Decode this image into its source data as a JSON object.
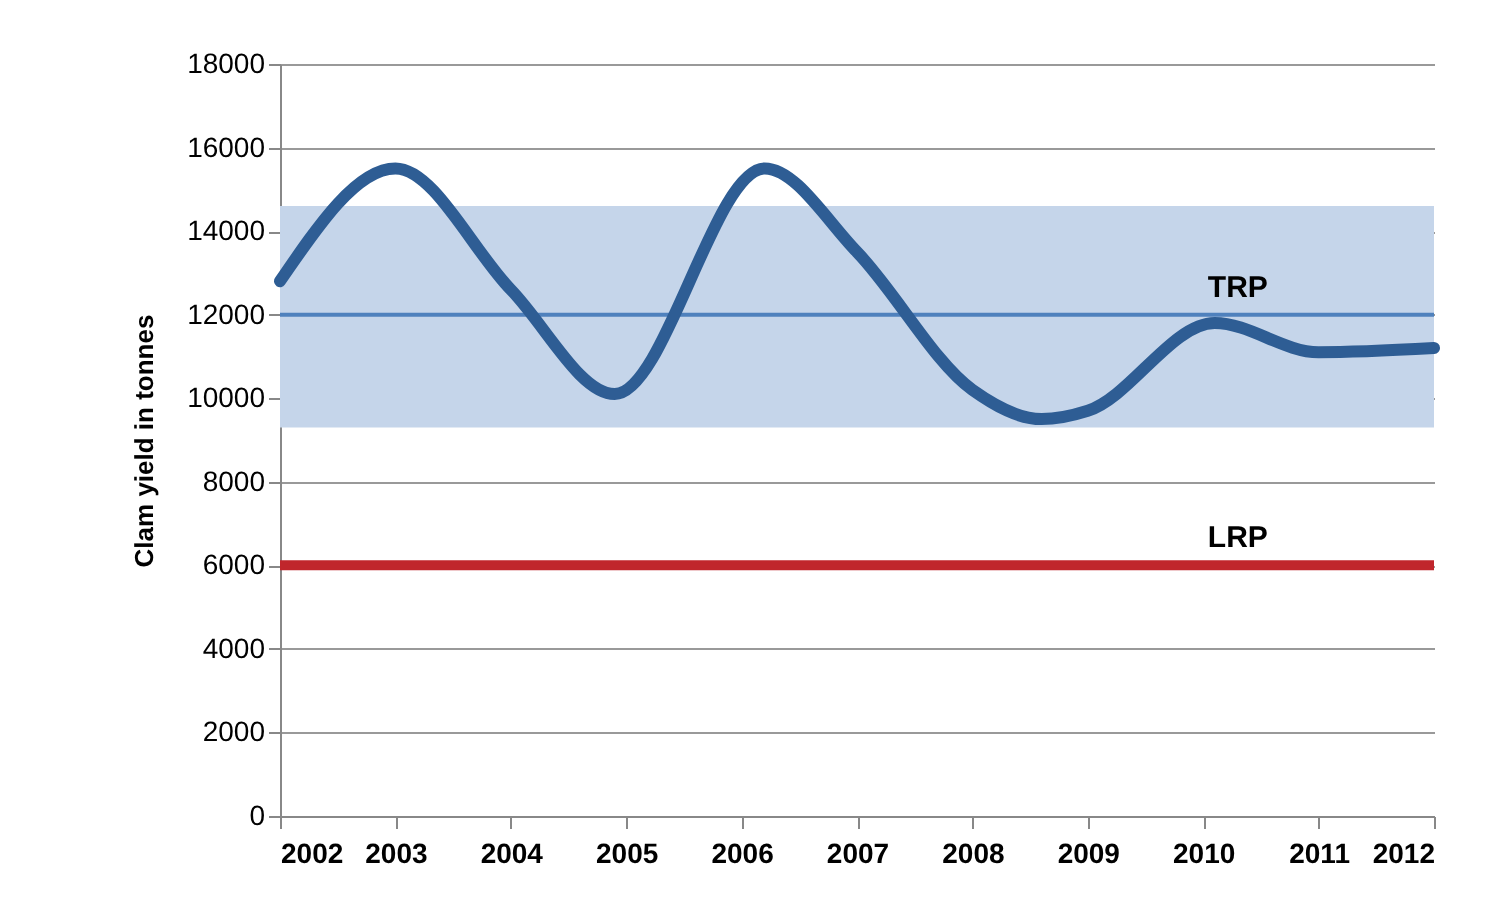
{
  "chart_data": {
    "type": "line",
    "ylabel": "Clam yield in tonnes",
    "x": [
      2002,
      2003,
      2004,
      2004.9,
      2006.2,
      2007,
      2008,
      2008.6,
      2009,
      2010.1,
      2011,
      2012
    ],
    "series": [
      {
        "color": "#2e5d94",
        "values": [
          12800,
          15500,
          12600,
          10100,
          15500,
          13500,
          10200,
          9500,
          9700,
          11800,
          11100,
          11200
        ]
      }
    ],
    "xlim": [
      2002,
      2012
    ],
    "xticks": [
      2002,
      2003,
      2004,
      2005,
      2006,
      2007,
      2008,
      2009,
      2010,
      2011,
      2012
    ],
    "ylim": [
      0,
      18000
    ],
    "yticks": [
      0,
      2000,
      4000,
      6000,
      8000,
      10000,
      12000,
      14000,
      16000,
      18000
    ],
    "grid": "y",
    "line_style": "solid",
    "ref_lines": [
      {
        "axis": "y",
        "value": 12000,
        "label": "TRP",
        "color": "#4f81bd"
      },
      {
        "axis": "y",
        "value": 6000,
        "label": "LRP",
        "color": "#c0262c"
      }
    ],
    "bands": [
      {
        "axis": "y",
        "from": 9300,
        "to": 14600,
        "color": "#c5d5ea"
      }
    ]
  }
}
